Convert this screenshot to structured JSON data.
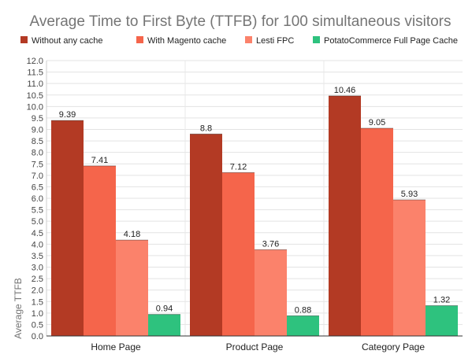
{
  "chart_data": {
    "type": "bar",
    "title": "Average Time to First Byte (TTFB) for 100 simultaneous visitors",
    "ylabel": "Average TTFB",
    "xlabel": "",
    "categories": [
      "Home Page",
      "Product Page",
      "Category Page"
    ],
    "series": [
      {
        "name": "Without any cache",
        "color": "#b33a24",
        "values": [
          9.39,
          8.8,
          10.46
        ]
      },
      {
        "name": "With Magento cache",
        "color": "#f5654b",
        "values": [
          7.41,
          7.12,
          9.05
        ]
      },
      {
        "name": "Lesti FPC",
        "color": "#fb826b",
        "values": [
          4.18,
          3.76,
          5.93
        ]
      },
      {
        "name": "PotatoCommerce Full Page Cache",
        "color": "#2ec27e",
        "values": [
          0.94,
          0.88,
          1.32
        ]
      }
    ],
    "ylim": [
      0,
      12
    ],
    "ytick_step": 0.5,
    "grid": true,
    "legend_position": "top"
  }
}
